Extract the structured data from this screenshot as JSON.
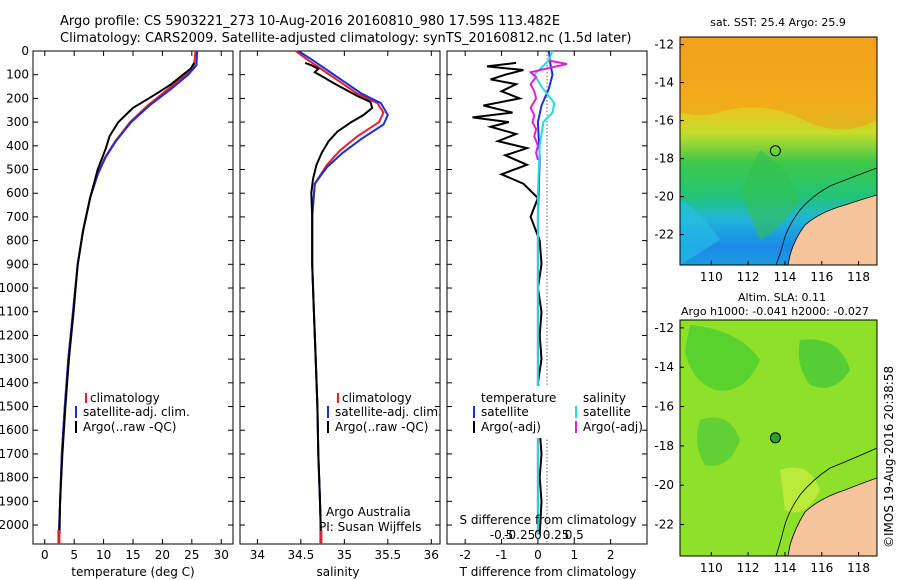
{
  "header": {
    "line1": "Argo profile: CS 5903221_273 10-Aug-2016 20160810_980 17.59S 113.482E",
    "line2": "Climatology: CARS2009. Satellite-adjusted climatology: synTS_20160812.nc (1.5d later)"
  },
  "credit": "©IMOS 19-Aug-2016 20:38:58",
  "colors": {
    "climatology": "#e8202a",
    "satellite": "#1c2fd6",
    "argo": "#000000",
    "argo_salinity_diff": "#e020d8",
    "satellite_salinity_diff": "#22dde0",
    "land": "#f6c49a"
  },
  "chart_data": [
    {
      "type": "line",
      "panel": "temperature",
      "xlabel": "temperature (deg C)",
      "ylabel": "",
      "xlim": [
        -2,
        32
      ],
      "ylim": [
        2080,
        0
      ],
      "xticks": [
        0,
        5,
        10,
        15,
        20,
        25,
        30
      ],
      "yticks": [
        0,
        100,
        200,
        300,
        400,
        500,
        600,
        700,
        800,
        900,
        1000,
        1100,
        1200,
        1300,
        1400,
        1500,
        1600,
        1700,
        1800,
        1900,
        2000
      ],
      "legend": [
        "climatology",
        "satellite-adj. clim.",
        "Argo(..raw -QC)"
      ],
      "series": [
        {
          "name": "climatology",
          "points": [
            [
              25.6,
              0
            ],
            [
              25.4,
              60
            ],
            [
              24.0,
              100
            ],
            [
              21.0,
              160
            ],
            [
              17.5,
              230
            ],
            [
              14.5,
              300
            ],
            [
              12.0,
              380
            ],
            [
              10.2,
              450
            ],
            [
              9.0,
              520
            ],
            [
              7.7,
              620
            ],
            [
              6.5,
              760
            ],
            [
              5.6,
              900
            ],
            [
              4.8,
              1100
            ],
            [
              4.0,
              1300
            ],
            [
              3.4,
              1500
            ],
            [
              2.9,
              1700
            ],
            [
              2.6,
              1900
            ],
            [
              2.4,
              2040
            ]
          ]
        },
        {
          "name": "satellite-adj. clim.",
          "points": [
            [
              25.9,
              0
            ],
            [
              25.8,
              60
            ],
            [
              24.4,
              100
            ],
            [
              21.5,
              160
            ],
            [
              17.8,
              230
            ],
            [
              14.7,
              300
            ],
            [
              12.1,
              380
            ],
            [
              10.3,
              450
            ],
            [
              9.0,
              520
            ],
            [
              7.7,
              620
            ],
            [
              6.5,
              760
            ],
            [
              5.6,
              900
            ],
            [
              4.8,
              1100
            ],
            [
              4.0,
              1300
            ],
            [
              3.4,
              1500
            ],
            [
              2.9,
              1700
            ],
            [
              2.6,
              1900
            ],
            [
              2.4,
              2040
            ]
          ]
        },
        {
          "name": "Argo(..raw -QC)",
          "points": [
            [
              25.4,
              50
            ],
            [
              24.8,
              75
            ],
            [
              23.5,
              100
            ],
            [
              21.5,
              140
            ],
            [
              19.0,
              180
            ],
            [
              15.0,
              240
            ],
            [
              12.5,
              300
            ],
            [
              11.0,
              360
            ],
            [
              10.4,
              410
            ],
            [
              9.0,
              500
            ],
            [
              7.7,
              620
            ],
            [
              6.5,
              760
            ],
            [
              5.6,
              900
            ],
            [
              4.9,
              1100
            ],
            [
              4.1,
              1300
            ],
            [
              3.5,
              1500
            ],
            [
              3.0,
              1700
            ],
            [
              2.6,
              1900
            ],
            [
              2.5,
              2040
            ]
          ]
        }
      ]
    },
    {
      "type": "line",
      "panel": "salinity",
      "xlabel": "salinity",
      "xlim": [
        33.8,
        36.1
      ],
      "ylim": [
        2080,
        0
      ],
      "xticks": [
        34,
        34.5,
        35,
        35.5,
        36
      ],
      "legend": [
        "climatology",
        "satellite-adj. clim.",
        "Argo(..raw -QC)"
      ],
      "annotation": [
        "Argo Australia",
        "PI: Susan Wijffels"
      ],
      "series": [
        {
          "name": "climatology",
          "points": [
            [
              34.44,
              0
            ],
            [
              34.55,
              30
            ],
            [
              34.75,
              80
            ],
            [
              34.95,
              130
            ],
            [
              35.15,
              180
            ],
            [
              35.38,
              220
            ],
            [
              35.45,
              260
            ],
            [
              35.4,
              300
            ],
            [
              35.15,
              360
            ],
            [
              34.95,
              420
            ],
            [
              34.8,
              480
            ],
            [
              34.66,
              560
            ],
            [
              34.63,
              700
            ],
            [
              34.63,
              900
            ],
            [
              34.65,
              1100
            ],
            [
              34.67,
              1300
            ],
            [
              34.69,
              1500
            ],
            [
              34.7,
              1700
            ],
            [
              34.72,
              1900
            ],
            [
              34.73,
              2040
            ]
          ]
        },
        {
          "name": "satellite-adj. clim.",
          "points": [
            [
              34.47,
              0
            ],
            [
              34.6,
              30
            ],
            [
              34.8,
              80
            ],
            [
              35.0,
              130
            ],
            [
              35.2,
              180
            ],
            [
              35.42,
              220
            ],
            [
              35.5,
              270
            ],
            [
              35.45,
              310
            ],
            [
              35.2,
              370
            ],
            [
              34.98,
              430
            ],
            [
              34.8,
              490
            ],
            [
              34.66,
              560
            ],
            [
              34.63,
              700
            ],
            [
              34.63,
              900
            ],
            [
              34.65,
              1100
            ],
            [
              34.67,
              1300
            ],
            [
              34.69,
              1500
            ],
            [
              34.7,
              1700
            ],
            [
              34.72,
              1900
            ],
            [
              34.73,
              2040
            ]
          ]
        },
        {
          "name": "Argo(..raw -QC)",
          "points": [
            [
              34.55,
              50
            ],
            [
              34.62,
              60
            ],
            [
              34.7,
              75
            ],
            [
              34.66,
              90
            ],
            [
              34.76,
              110
            ],
            [
              34.85,
              130
            ],
            [
              34.95,
              150
            ],
            [
              35.05,
              170
            ],
            [
              35.15,
              190
            ],
            [
              35.3,
              215
            ],
            [
              35.32,
              240
            ],
            [
              35.22,
              270
            ],
            [
              35.08,
              300
            ],
            [
              34.92,
              340
            ],
            [
              34.82,
              380
            ],
            [
              34.74,
              430
            ],
            [
              34.68,
              480
            ],
            [
              34.64,
              540
            ],
            [
              34.62,
              600
            ],
            [
              34.63,
              700
            ],
            [
              34.63,
              900
            ],
            [
              34.65,
              1100
            ],
            [
              34.67,
              1300
            ],
            [
              34.69,
              1500
            ],
            [
              34.7,
              1700
            ],
            [
              34.72,
              1900
            ],
            [
              34.73,
              2040
            ]
          ]
        }
      ]
    },
    {
      "type": "line",
      "panel": "difference",
      "xlabel": "T difference from climatology",
      "top_xlabel": "S difference from climatology",
      "xlim": [
        -2.5,
        3
      ],
      "ylim": [
        2080,
        0
      ],
      "xticks": [
        -2,
        -1,
        0,
        1,
        2
      ],
      "top_xticks_labels": [
        "-0.5",
        "-0.25",
        "0",
        "0.25",
        "0.5"
      ],
      "legend_temperature_title": "temperature",
      "legend_salinity_title": "salinity",
      "legend": [
        "satellite",
        "Argo(-adj)",
        "satellite",
        "Argo(-adj)"
      ],
      "series": [
        {
          "name": "temperature satellite",
          "points": [
            [
              0.3,
              0
            ],
            [
              0.35,
              60
            ],
            [
              0.4,
              100
            ],
            [
              0.3,
              160
            ],
            [
              0.1,
              230
            ],
            [
              0.0,
              300
            ],
            [
              0.05,
              450
            ],
            [
              0.0,
              700
            ],
            [
              0.0,
              1000
            ],
            [
              0.0,
              2040
            ]
          ]
        },
        {
          "name": "temperature Argo(-adj)",
          "points": [
            [
              -0.6,
              50
            ],
            [
              -1.4,
              65
            ],
            [
              -0.4,
              80
            ],
            [
              -0.9,
              100
            ],
            [
              -1.3,
              120
            ],
            [
              -0.6,
              140
            ],
            [
              -1.0,
              170
            ],
            [
              -0.5,
              200
            ],
            [
              -1.5,
              230
            ],
            [
              -0.7,
              260
            ],
            [
              -1.8,
              280
            ],
            [
              -0.8,
              300
            ],
            [
              -1.3,
              320
            ],
            [
              -0.6,
              350
            ],
            [
              -1.1,
              380
            ],
            [
              -0.3,
              410
            ],
            [
              -0.9,
              440
            ],
            [
              -0.3,
              480
            ],
            [
              -1.0,
              520
            ],
            [
              -0.4,
              560
            ],
            [
              0.0,
              620
            ],
            [
              -0.2,
              700
            ],
            [
              0.05,
              800
            ],
            [
              0.1,
              900
            ],
            [
              0.0,
              1000
            ],
            [
              0.1,
              1100
            ],
            [
              0.05,
              1200
            ],
            [
              0.1,
              1300
            ],
            [
              0.0,
              1400
            ],
            [
              0.1,
              1500
            ],
            [
              0.05,
              1600
            ],
            [
              0.1,
              1700
            ],
            [
              0.05,
              1800
            ],
            [
              0.1,
              1900
            ],
            [
              0.05,
              2040
            ]
          ]
        },
        {
          "name": "salinity satellite",
          "points": [
            [
              0.4,
              0
            ],
            [
              0.3,
              40
            ],
            [
              0.1,
              70
            ],
            [
              -0.1,
              100
            ],
            [
              0.1,
              150
            ],
            [
              0.45,
              220
            ],
            [
              0.4,
              260
            ],
            [
              0.15,
              300
            ],
            [
              0.05,
              400
            ],
            [
              0.0,
              600
            ],
            [
              0.0,
              1000
            ],
            [
              0.0,
              2040
            ]
          ]
        },
        {
          "name": "salinity Argo(-adj)",
          "points": [
            [
              0.3,
              40
            ],
            [
              0.8,
              55
            ],
            [
              0.2,
              75
            ],
            [
              -0.2,
              90
            ],
            [
              -0.05,
              110
            ],
            [
              -0.2,
              140
            ],
            [
              -0.1,
              170
            ],
            [
              -0.05,
              200
            ],
            [
              -0.2,
              240
            ],
            [
              -0.1,
              270
            ],
            [
              -0.15,
              300
            ],
            [
              -0.05,
              330
            ],
            [
              -0.1,
              360
            ],
            [
              0.0,
              400
            ],
            [
              -0.05,
              430
            ],
            [
              0.0,
              460
            ]
          ]
        }
      ]
    },
    {
      "type": "heatmap",
      "panel": "sst_map",
      "title": "sat. SST: 25.4  Argo: 25.9",
      "xlim": [
        108.3,
        119
      ],
      "ylim": [
        -23.6,
        -11.6
      ],
      "xticks": [
        110,
        112,
        114,
        116,
        118
      ],
      "yticks": [
        -12,
        -14,
        -16,
        -18,
        -20,
        -22
      ],
      "marker": {
        "lon": 113.482,
        "lat": -17.59
      }
    },
    {
      "type": "heatmap",
      "panel": "sla_map",
      "title_line1": "Altim. SLA: 0.11",
      "title_line2": "Argo h1000: -0.041 h2000: -0.027",
      "xlim": [
        108.3,
        119
      ],
      "ylim": [
        -23.6,
        -11.6
      ],
      "xticks": [
        110,
        112,
        114,
        116,
        118
      ],
      "yticks": [
        -12,
        -14,
        -16,
        -18,
        -20,
        -22
      ],
      "marker": {
        "lon": 113.482,
        "lat": -17.59
      }
    }
  ]
}
